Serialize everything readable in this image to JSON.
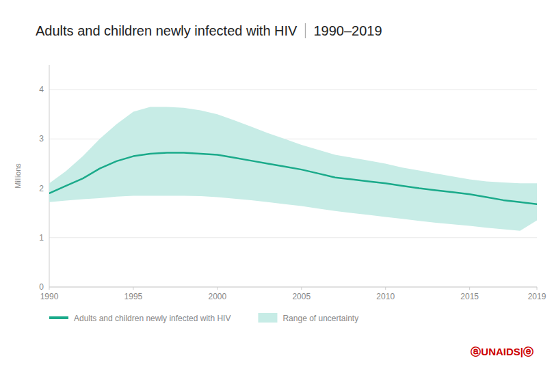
{
  "chart_data": {
    "type": "line",
    "title": "Adults and children newly infected with HIV",
    "subtitle": "1990–2019",
    "ylabel": "Millions",
    "annotations": [
      "ⓐUNAIDS|ⓔ"
    ],
    "x": [
      1990,
      1991,
      1992,
      1993,
      1994,
      1995,
      1996,
      1997,
      1998,
      1999,
      2000,
      2001,
      2002,
      2003,
      2004,
      2005,
      2006,
      2007,
      2008,
      2009,
      2010,
      2011,
      2012,
      2013,
      2014,
      2015,
      2016,
      2017,
      2018,
      2019
    ],
    "xlim": [
      1990,
      2019
    ],
    "xticks": [
      1990,
      1995,
      2000,
      2005,
      2010,
      2015,
      2019
    ],
    "ylim": [
      0,
      4.5
    ],
    "yticks": [
      0,
      1,
      2,
      3,
      4
    ],
    "grid": true,
    "legend": "bottom",
    "series": [
      {
        "name": "Adults and children newly infected with HIV",
        "type": "line",
        "color": "#1aaa8a",
        "values": [
          1.9,
          2.05,
          2.2,
          2.4,
          2.55,
          2.65,
          2.7,
          2.72,
          2.72,
          2.7,
          2.68,
          2.62,
          2.56,
          2.5,
          2.44,
          2.38,
          2.3,
          2.22,
          2.18,
          2.14,
          2.1,
          2.05,
          2.0,
          1.96,
          1.92,
          1.88,
          1.82,
          1.76,
          1.72,
          1.68
        ]
      },
      {
        "name": "Range of uncertainty",
        "type": "band",
        "color": "#c7ece6",
        "lower": [
          1.72,
          1.75,
          1.78,
          1.8,
          1.83,
          1.85,
          1.85,
          1.85,
          1.85,
          1.84,
          1.82,
          1.79,
          1.76,
          1.72,
          1.68,
          1.64,
          1.59,
          1.54,
          1.5,
          1.46,
          1.42,
          1.38,
          1.34,
          1.3,
          1.27,
          1.24,
          1.2,
          1.17,
          1.14,
          1.35
        ],
        "upper": [
          2.1,
          2.35,
          2.65,
          3.0,
          3.3,
          3.55,
          3.65,
          3.65,
          3.63,
          3.58,
          3.5,
          3.38,
          3.25,
          3.12,
          3.0,
          2.88,
          2.78,
          2.68,
          2.62,
          2.56,
          2.5,
          2.42,
          2.36,
          2.3,
          2.24,
          2.18,
          2.14,
          2.12,
          2.1,
          2.1
        ]
      }
    ]
  }
}
